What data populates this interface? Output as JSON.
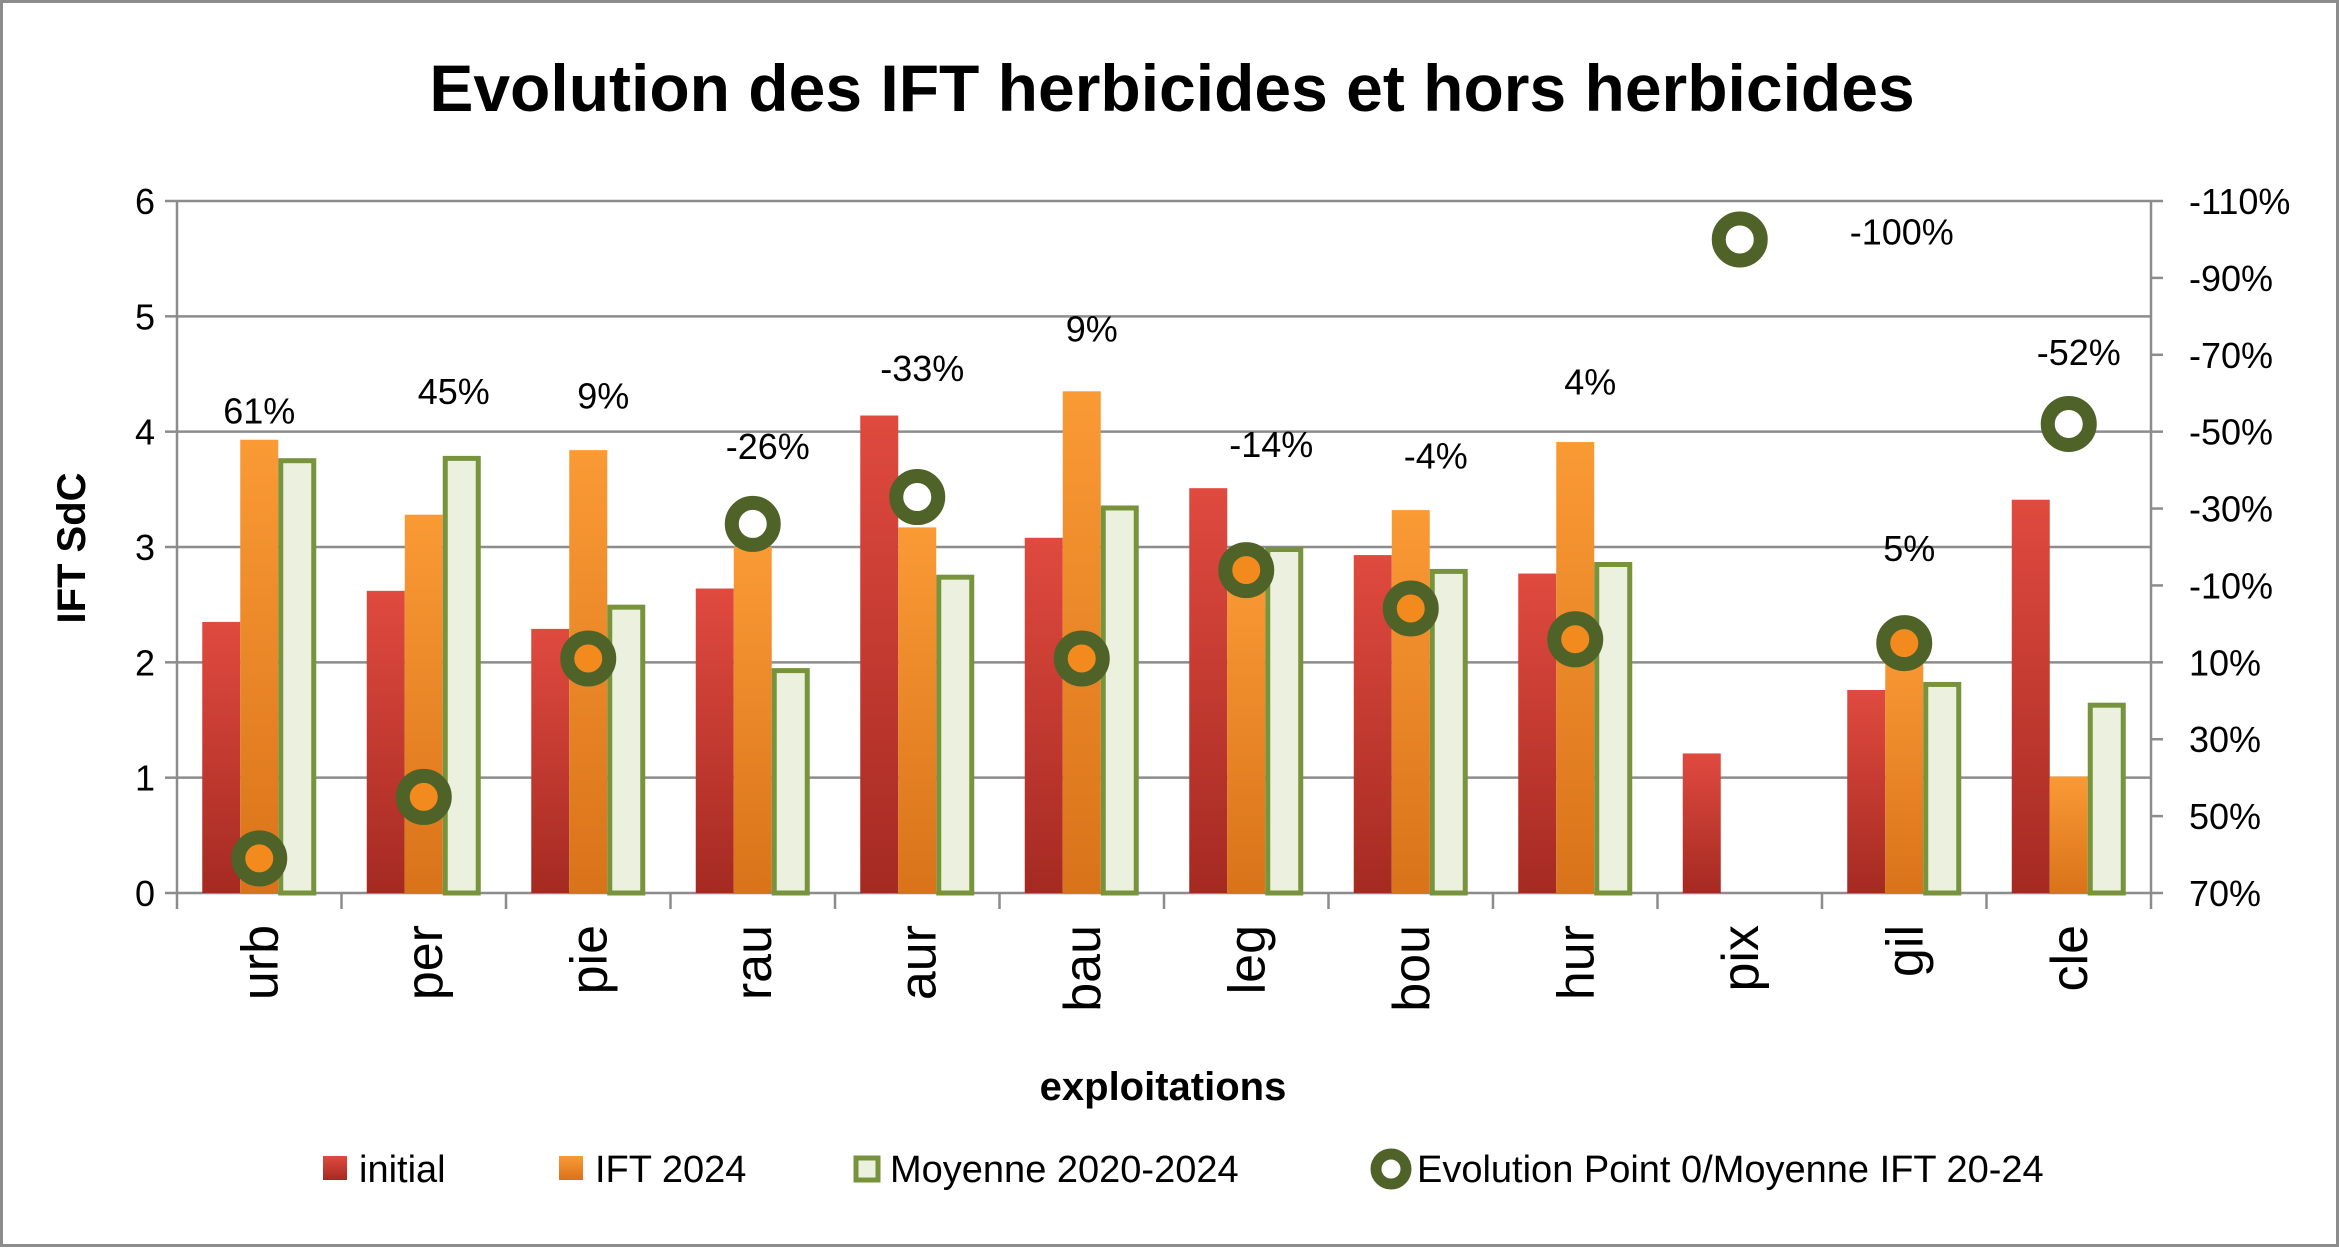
{
  "chart_data": {
    "type": "bar",
    "title": "Evolution des IFT herbicides et hors herbicides",
    "xlabel": "exploitations",
    "ylabel": "IFT SdC",
    "ylim": [
      0,
      6
    ],
    "yticks": [
      "0",
      "1",
      "2",
      "3",
      "4",
      "5",
      "6"
    ],
    "y2lim": [
      -110,
      70
    ],
    "y2_reversed": true,
    "y2ticks": [
      "-110%",
      "-90%",
      "-70%",
      "-50%",
      "-30%",
      "-10%",
      "10%",
      "30%",
      "50%",
      "70%"
    ],
    "categories": [
      "urb",
      "per",
      "pie",
      "rau",
      "aur",
      "bau",
      "leg",
      "bou",
      "hur",
      "pix",
      "gil",
      "cle"
    ],
    "series": [
      {
        "name": "initial",
        "type": "bar",
        "axis": "left",
        "color": "#c0392b",
        "values": [
          2.35,
          2.62,
          2.29,
          2.64,
          4.14,
          3.08,
          3.51,
          2.93,
          2.77,
          1.21,
          1.76,
          3.41
        ]
      },
      {
        "name": "IFT 2024",
        "type": "bar",
        "axis": "left",
        "color": "#f28a1e",
        "values": [
          3.93,
          3.28,
          3.84,
          3.0,
          3.17,
          4.35,
          2.85,
          3.32,
          3.91,
          0,
          2.2,
          1.01
        ]
      },
      {
        "name": "Moyenne 2020-2024",
        "type": "bar",
        "axis": "left",
        "color": "#ebf1de",
        "border": "#77933c",
        "values": [
          3.77,
          3.79,
          2.5,
          1.95,
          2.76,
          3.36,
          3.0,
          2.81,
          2.87,
          null,
          1.83,
          1.65
        ]
      },
      {
        "name": "Evolution Point 0/Moyenne IFT 20-24",
        "type": "scatter",
        "axis": "right",
        "color": "#4f6228",
        "values": [
          61,
          45,
          9,
          -26,
          -33,
          9,
          -14,
          -4,
          4,
          -100,
          5,
          -52
        ],
        "labels": [
          "61%",
          "45%",
          "9%",
          "-26%",
          "-33%",
          "9%",
          "-14%",
          "-4%",
          "4%",
          "-100%",
          "5%",
          "-52%"
        ]
      }
    ],
    "grid": true,
    "legend_position": "bottom"
  }
}
